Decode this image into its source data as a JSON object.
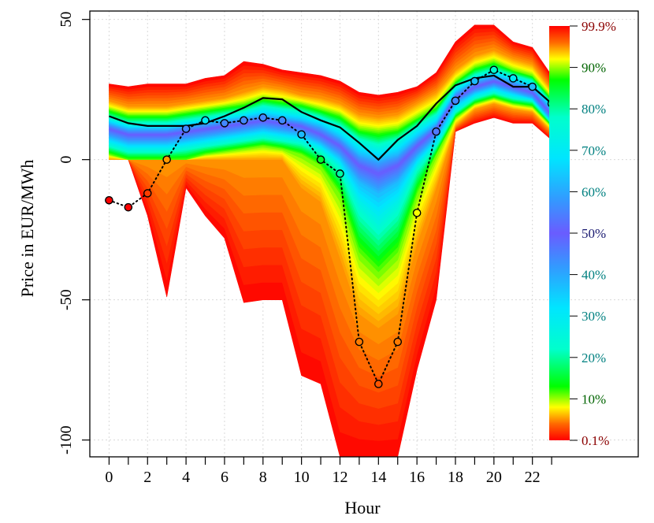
{
  "chart_data": {
    "type": "area",
    "xlabel": "Hour",
    "ylabel": "Price in EUR/MWh",
    "xlim": [
      -1,
      27.5
    ],
    "ylim": [
      -106,
      53
    ],
    "x_ticks": [
      0,
      2,
      4,
      6,
      8,
      10,
      12,
      14,
      16,
      18,
      20,
      22
    ],
    "x_minor_ticks": [
      1,
      3,
      5,
      7,
      9,
      11,
      13,
      15,
      17,
      19,
      21,
      23
    ],
    "y_ticks": [
      -100,
      -50,
      0,
      50
    ],
    "grid": true,
    "hours": [
      0,
      1,
      2,
      3,
      4,
      5,
      6,
      7,
      8,
      9,
      10,
      11,
      12,
      13,
      14,
      15,
      16,
      17,
      18,
      19,
      20,
      21,
      22,
      23
    ],
    "quantile_levels": [
      0.1,
      10,
      20,
      30,
      40,
      50,
      60,
      70,
      80,
      90,
      99.9
    ],
    "quantiles": [
      [
        0,
        0,
        -20,
        -49,
        -10,
        -20,
        -28,
        -51,
        -50,
        -50,
        -77,
        -80,
        -106,
        -106,
        -106,
        -106,
        -75,
        -50,
        10,
        13,
        15,
        13,
        13,
        7
      ],
      [
        0,
        0,
        0,
        0,
        0,
        0,
        0,
        0,
        0,
        0,
        -10,
        -15,
        -35,
        -55,
        -60,
        -55,
        -30,
        -10,
        12,
        18,
        20,
        18,
        17,
        10
      ],
      [
        2,
        0,
        0,
        0,
        0,
        2,
        3,
        4,
        5,
        4,
        2,
        -2,
        -12,
        -33,
        -40,
        -33,
        -12,
        2,
        15,
        20,
        22,
        20,
        19,
        12
      ],
      [
        5,
        3,
        3,
        3,
        4,
        5,
        6,
        7,
        8,
        7,
        6,
        3,
        -3,
        -18,
        -25,
        -18,
        -3,
        5,
        17,
        22,
        24,
        22,
        21,
        13
      ],
      [
        8,
        6,
        6,
        6,
        7,
        8,
        9,
        10,
        11,
        10,
        9,
        6,
        1,
        -8,
        -12,
        -8,
        1,
        8,
        20,
        24,
        26,
        24,
        22,
        14
      ],
      [
        11,
        9,
        9,
        9,
        10,
        11,
        12,
        13,
        14,
        13,
        12,
        9,
        5,
        -2,
        -5,
        -2,
        5,
        11,
        22,
        26,
        28,
        26,
        24,
        16
      ],
      [
        13,
        11,
        11,
        11,
        12,
        13,
        14,
        15,
        16,
        15,
        14,
        12,
        8,
        2,
        0,
        2,
        8,
        13,
        24,
        28,
        30,
        28,
        26,
        18
      ],
      [
        15,
        13,
        13,
        13,
        14,
        15,
        16,
        17,
        19,
        18,
        17,
        15,
        12,
        7,
        5,
        7,
        12,
        16,
        26,
        30,
        32,
        30,
        28,
        20
      ],
      [
        18,
        16,
        16,
        16,
        17,
        18,
        19,
        20,
        22,
        21,
        20,
        18,
        16,
        11,
        10,
        11,
        15,
        19,
        28,
        33,
        35,
        32,
        30,
        22
      ],
      [
        21,
        19,
        19,
        19,
        20,
        21,
        22,
        24,
        26,
        25,
        23,
        22,
        20,
        16,
        15,
        16,
        20,
        24,
        32,
        37,
        39,
        36,
        34,
        25
      ],
      [
        27,
        26,
        27,
        27,
        27,
        29,
        30,
        35,
        34,
        32,
        31,
        30,
        28,
        24,
        23,
        24,
        26,
        31,
        42,
        48,
        48,
        42,
        40,
        30
      ]
    ],
    "median_line": [
      15.5,
      13,
      12,
      12,
      12,
      13,
      15.5,
      18.5,
      22,
      21.5,
      17,
      14,
      11.5,
      6,
      0,
      7,
      12,
      20,
      26.5,
      29,
      30,
      26,
      26,
      20
    ],
    "observed": [
      -14.5,
      -17,
      -12,
      0,
      11,
      14,
      13,
      14,
      15,
      14,
      9,
      0,
      -5,
      -65,
      -80,
      -65,
      -19,
      10,
      21,
      28,
      32,
      29,
      26,
      20
    ],
    "colorbar": {
      "labels": [
        "99.9%",
        "90%",
        "80%",
        "70%",
        "60%",
        "50%",
        "40%",
        "30%",
        "20%",
        "10%",
        "0.1%"
      ],
      "label_colors": [
        "#8b0000",
        "#006400",
        "#008080",
        "#008080",
        "#008080",
        "#191970",
        "#008080",
        "#008080",
        "#008080",
        "#006400",
        "#8b0000"
      ]
    }
  }
}
